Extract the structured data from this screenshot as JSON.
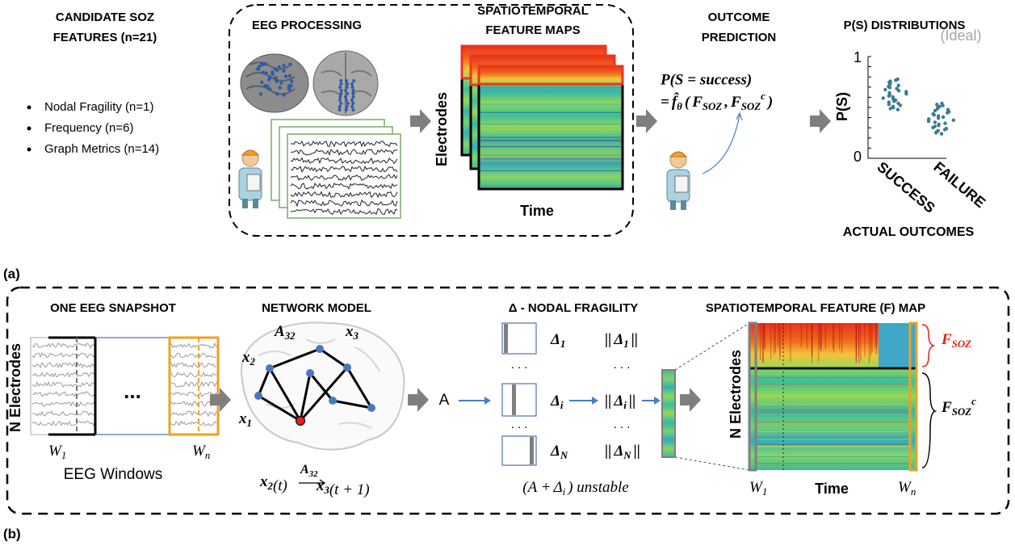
{
  "panel_a": {
    "label": "(a)",
    "features": {
      "title": [
        "CANDIDATE SOZ",
        "FEATURES (n=21)"
      ],
      "items": [
        "Nodal Fragility (n=1)",
        "Frequency (n=6)",
        "Graph Metrics (n=14)"
      ]
    },
    "eeg_processing": {
      "title": "EEG PROCESSING"
    },
    "feature_maps": {
      "title": [
        "SPATIOTEMPORAL",
        "FEATURE MAPS"
      ],
      "y_label": "Electrodes",
      "x_label": "Time"
    },
    "outcome_prediction": {
      "title": [
        "OUTCOME",
        "PREDICTION"
      ],
      "formula_line1": "P(S = success)",
      "formula_line2": {
        "eq": "=",
        "f": {
          "base": "f̂",
          "sub": "θ"
        },
        "open": "(",
        "arg1": {
          "base": "F",
          "sub": "SOZ"
        },
        "comma": ",",
        "arg2": {
          "base": "F",
          "sub": "SOZ",
          "sup": "c"
        },
        "close": ")"
      }
    },
    "distributions": {
      "title": "P(S) DISTRIBUTIONS",
      "y_label": "P(S)",
      "y_top": "1",
      "y_bottom": "0",
      "ideal": "(Ideal)",
      "categories": [
        "SUCCESS",
        "FAILURE"
      ],
      "x_label": "ACTUAL OUTCOMES"
    }
  },
  "panel_b": {
    "label": "(b)",
    "snapshot": {
      "title": "ONE EEG SNAPSHOT",
      "y_label": "N Electrodes",
      "ellipsis": "...",
      "w_first": {
        "base": "W",
        "sub": "1"
      },
      "w_last": {
        "base": "W",
        "sub": "n"
      },
      "caption": "EEG Windows"
    },
    "network": {
      "title": "NETWORK MODEL",
      "edge": {
        "base": "A",
        "sub": "32"
      },
      "nodes": [
        {
          "base": "x",
          "sub": "3"
        },
        {
          "base": "x",
          "sub": "2"
        },
        {
          "base": "x",
          "sub": "1"
        }
      ],
      "transition": {
        "from": {
          "base": "x",
          "sub": "2"
        },
        "from_arg": "(t)",
        "to": {
          "base": "x",
          "sub": "3"
        },
        "to_arg": "(t + 1)",
        "edge": {
          "base": "A",
          "sub": "32"
        }
      }
    },
    "matrix": "A",
    "fragility": {
      "title": "Δ - NODAL FRAGILITY",
      "rows": [
        {
          "delta": {
            "base": "Δ",
            "sub": "1"
          },
          "norm": {
            "open": "||",
            "delta": {
              "base": "Δ",
              "sub": "1"
            },
            "close": "||"
          }
        },
        {
          "delta": {
            "base": "Δ",
            "sub": "i"
          },
          "norm": {
            "open": "||",
            "delta": {
              "base": "Δ",
              "sub": "i"
            },
            "close": "||"
          }
        },
        {
          "delta": {
            "base": "Δ",
            "sub": "N"
          },
          "norm": {
            "open": "||",
            "delta": {
              "base": "Δ",
              "sub": "N"
            },
            "close": "||"
          }
        }
      ],
      "dots": [
        ". . .",
        ". . .",
        ". . .",
        ". . ."
      ],
      "condition": {
        "open": "(A +",
        "delta": {
          "base": "Δ",
          "sub": "i"
        },
        "close": ") unstable"
      }
    },
    "feature_map": {
      "title": "SPATIOTEMPORAL FEATURE (F) MAP",
      "y_label": "N Electrodes",
      "soz": {
        "base": "F",
        "sub": "SOZ"
      },
      "non_soz": {
        "base": "F",
        "sub": "SOZ",
        "sup": "c"
      },
      "w_first": {
        "base": "W",
        "sub": "1"
      },
      "w_last": {
        "base": "W",
        "sub": "n"
      },
      "x_label": "Time"
    }
  }
}
